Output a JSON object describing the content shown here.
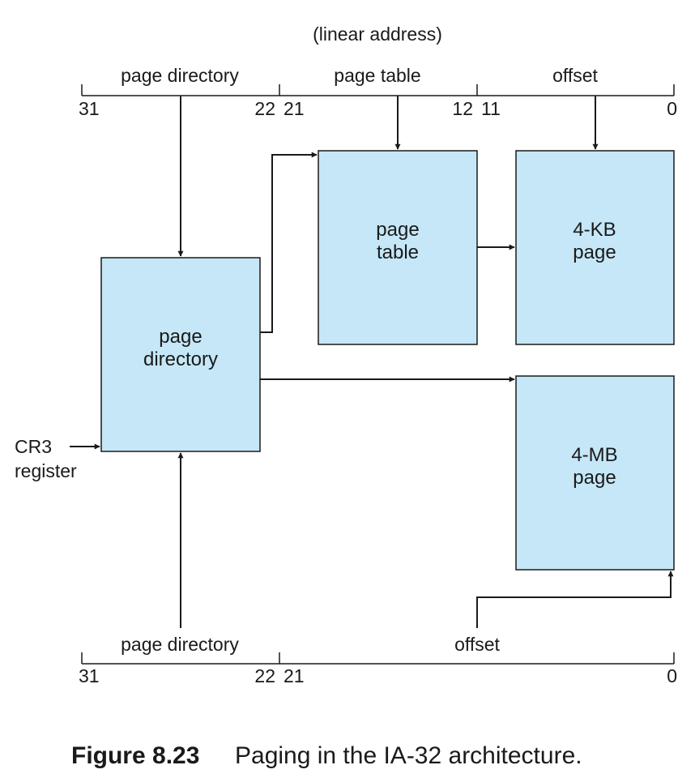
{
  "colors": {
    "box_fill": "#c5e7f7",
    "stroke": "#1a1a1a"
  },
  "top_address": {
    "title": "(linear address)",
    "fields": {
      "directory": "page directory",
      "table": "page table",
      "offset": "offset"
    },
    "bits": {
      "b31": "31",
      "b22": "22",
      "b21": "21",
      "b12": "12",
      "b11": "11",
      "b0": "0"
    }
  },
  "boxes": {
    "page_directory": [
      "page",
      "directory"
    ],
    "page_table": [
      "page",
      "table"
    ],
    "page_4kb": [
      "4-KB",
      "page"
    ],
    "page_4mb": [
      "4-MB",
      "page"
    ]
  },
  "cr3": [
    "CR3",
    "register"
  ],
  "bottom_address": {
    "fields": {
      "directory": "page directory",
      "offset": "offset"
    },
    "bits": {
      "b31": "31",
      "b22": "22",
      "b21": "21",
      "b0": "0"
    }
  },
  "caption": {
    "number": "Figure 8.23",
    "text": "Paging in the IA-32 architecture."
  }
}
